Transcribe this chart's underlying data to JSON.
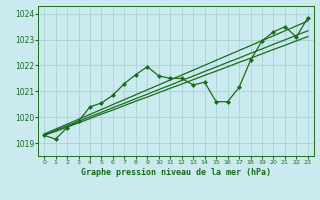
{
  "title": "Graphe pression niveau de la mer (hPa)",
  "bg_color": "#caeaf0",
  "grid_color": "#9ecfcf",
  "line_color": "#1a6b1a",
  "xlim": [
    -0.5,
    23.5
  ],
  "ylim": [
    1018.5,
    1024.3
  ],
  "yticks": [
    1019,
    1020,
    1021,
    1022,
    1023,
    1024
  ],
  "xticks": [
    0,
    1,
    2,
    3,
    4,
    5,
    6,
    7,
    8,
    9,
    10,
    11,
    12,
    13,
    14,
    15,
    16,
    17,
    18,
    19,
    20,
    21,
    22,
    23
  ],
  "y_linear": [
    1019.3,
    1019.45,
    1019.6,
    1019.75,
    1019.9,
    1020.05,
    1020.2,
    1020.35,
    1020.5,
    1020.65,
    1020.8,
    1020.95,
    1021.1,
    1021.25,
    1021.4,
    1021.55,
    1021.7,
    1021.85,
    1022.0,
    1022.15,
    1022.3,
    1022.45,
    1022.6,
    1022.75
  ],
  "y_linear2": [
    1019.3,
    1019.47,
    1019.64,
    1019.81,
    1019.98,
    1020.15,
    1020.32,
    1020.49,
    1020.66,
    1020.83,
    1021.0,
    1021.17,
    1021.34,
    1021.51,
    1021.68,
    1021.85,
    1022.02,
    1022.19,
    1022.36,
    1022.53,
    1022.7,
    1022.87,
    1023.04,
    1023.21
  ],
  "y_linear3": [
    1019.3,
    1019.5,
    1019.7,
    1019.9,
    1020.1,
    1020.3,
    1020.5,
    1020.7,
    1020.9,
    1021.1,
    1021.3,
    1021.5,
    1021.7,
    1021.9,
    1022.1,
    1022.3,
    1022.5,
    1022.7,
    1022.9,
    1023.1,
    1023.3,
    1023.5,
    1023.7,
    1023.9
  ],
  "y_volatile": [
    1019.3,
    1019.15,
    1019.6,
    1019.85,
    1020.4,
    1020.55,
    1020.85,
    1021.3,
    1021.65,
    1021.95,
    1021.6,
    1021.5,
    1021.5,
    1021.25,
    1021.35,
    1020.6,
    1020.6,
    1021.15,
    1022.2,
    1022.95,
    1023.3,
    1023.5,
    1023.1,
    1023.85
  ]
}
